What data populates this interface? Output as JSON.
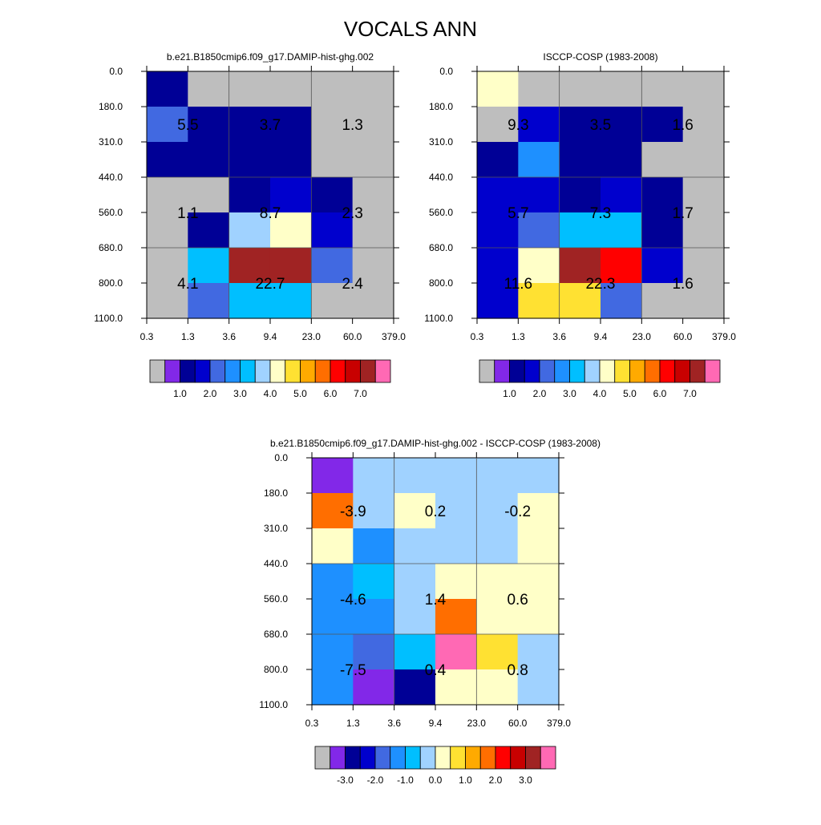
{
  "title": "VOCALS ANN",
  "chart_data": [
    {
      "type": "heatmap",
      "title": "b.e21.B1850cmip6.f09_g17.DAMIP-hist-ghg.002",
      "x_ticks": [
        "0.3",
        "1.3",
        "3.6",
        "9.4",
        "23.0",
        "60.0",
        "379.0"
      ],
      "y_ticks": [
        "0.0",
        "180.0",
        "310.0",
        "440.0",
        "560.0",
        "680.0",
        "800.0",
        "1100.0"
      ],
      "cells": [
        [
          1.0,
          0.0,
          0.0,
          0.0,
          0.0,
          0.0
        ],
        [
          2.0,
          1.0,
          1.0,
          1.0,
          0.0,
          0.0
        ],
        [
          1.0,
          1.0,
          1.0,
          1.0,
          0.0,
          0.0
        ],
        [
          0.0,
          0.0,
          1.0,
          1.5,
          1.0,
          0.0
        ],
        [
          0.0,
          1.0,
          3.5,
          4.0,
          1.5,
          0.0
        ],
        [
          0.0,
          3.0,
          7.0,
          7.0,
          2.0,
          0.0
        ],
        [
          0.0,
          2.0,
          3.0,
          3.0,
          0.0,
          0.0
        ]
      ],
      "block_labels": [
        [
          "5.5",
          "3.7",
          "1.3"
        ],
        [
          "1.1",
          "8.7",
          "2.3"
        ],
        [
          "4.1",
          "22.7",
          "2.4"
        ]
      ],
      "colorbar_labels": [
        "1.0",
        "2.0",
        "3.0",
        "4.0",
        "5.0",
        "6.0",
        "7.0"
      ],
      "colorbar_colors": [
        "#bebebe",
        "#8228e8",
        "#000096",
        "#0000cd",
        "#4169e1",
        "#1e90ff",
        "#00bfff",
        "#a0d2ff",
        "#ffffc8",
        "#ffe132",
        "#ffaa00",
        "#ff6e00",
        "#ff0000",
        "#c80000",
        "#a02323",
        "#ff69b4"
      ]
    },
    {
      "type": "heatmap",
      "title": "ISCCP-COSP (1983-2008)",
      "x_ticks": [
        "0.3",
        "1.3",
        "3.6",
        "9.4",
        "23.0",
        "60.0",
        "379.0"
      ],
      "y_ticks": [
        "0.0",
        "180.0",
        "310.0",
        "440.0",
        "560.0",
        "680.0",
        "800.0",
        "1100.0"
      ],
      "cells": [
        [
          4.0,
          0.0,
          0.0,
          0.0,
          0.0,
          0.0
        ],
        [
          0.0,
          1.5,
          1.0,
          1.0,
          1.0,
          0.0
        ],
        [
          1.0,
          2.5,
          1.0,
          1.0,
          0.0,
          0.0
        ],
        [
          1.5,
          1.5,
          1.0,
          1.5,
          1.0,
          0.0
        ],
        [
          1.5,
          2.0,
          3.0,
          3.0,
          1.0,
          0.0
        ],
        [
          1.5,
          4.0,
          7.0,
          6.0,
          1.5,
          0.0
        ],
        [
          1.5,
          4.5,
          4.5,
          2.0,
          0.0,
          0.0
        ]
      ],
      "block_labels": [
        [
          "9.3",
          "3.5",
          "1.6"
        ],
        [
          "5.7",
          "7.3",
          "1.7"
        ],
        [
          "11.6",
          "22.3",
          "1.6"
        ]
      ],
      "colorbar_labels": [
        "1.0",
        "2.0",
        "3.0",
        "4.0",
        "5.0",
        "6.0",
        "7.0"
      ],
      "colorbar_colors": [
        "#bebebe",
        "#8228e8",
        "#000096",
        "#0000cd",
        "#4169e1",
        "#1e90ff",
        "#00bfff",
        "#a0d2ff",
        "#ffffc8",
        "#ffe132",
        "#ffaa00",
        "#ff6e00",
        "#ff0000",
        "#c80000",
        "#a02323",
        "#ff69b4"
      ]
    },
    {
      "type": "heatmap",
      "title": "b.e21.B1850cmip6.f09_g17.DAMIP-hist-ghg.002 - ISCCP-COSP (1983-2008)",
      "x_ticks": [
        "0.3",
        "1.3",
        "3.6",
        "9.4",
        "23.0",
        "60.0",
        "379.0"
      ],
      "y_ticks": [
        "0.0",
        "180.0",
        "310.0",
        "440.0",
        "560.0",
        "680.0",
        "800.0",
        "1100.0"
      ],
      "cells": [
        [
          -4.0,
          -0.25,
          -0.25,
          -0.25,
          -0.25,
          -0.25
        ],
        [
          1.5,
          -0.25,
          0.25,
          -0.25,
          -0.25,
          0.25
        ],
        [
          0.25,
          -1.25,
          -0.25,
          -0.25,
          -0.25,
          0.25
        ],
        [
          -1.25,
          -0.75,
          -0.25,
          0.25,
          0.25,
          0.25
        ],
        [
          -1.25,
          -1.25,
          -0.25,
          1.5,
          0.25,
          0.25
        ],
        [
          -1.25,
          -1.75,
          -0.75,
          3.5,
          0.75,
          -0.25
        ],
        [
          -1.25,
          -3.25,
          -2.75,
          0.25,
          0.25,
          -0.25
        ]
      ],
      "block_labels": [
        [
          "-3.9",
          "0.2",
          "-0.2"
        ],
        [
          "-4.6",
          "1.4",
          "0.6"
        ],
        [
          "-7.5",
          "0.4",
          "0.8"
        ]
      ],
      "colorbar_labels": [
        "-3.0",
        "-2.0",
        "-1.0",
        "0.0",
        "1.0",
        "2.0",
        "3.0"
      ],
      "colorbar_colors": [
        "#bebebe",
        "#8228e8",
        "#000096",
        "#0000cd",
        "#4169e1",
        "#1e90ff",
        "#00bfff",
        "#a0d2ff",
        "#ffffc8",
        "#ffe132",
        "#ffaa00",
        "#ff6e00",
        "#ff0000",
        "#c80000",
        "#a02323",
        "#ff69b4"
      ]
    }
  ]
}
